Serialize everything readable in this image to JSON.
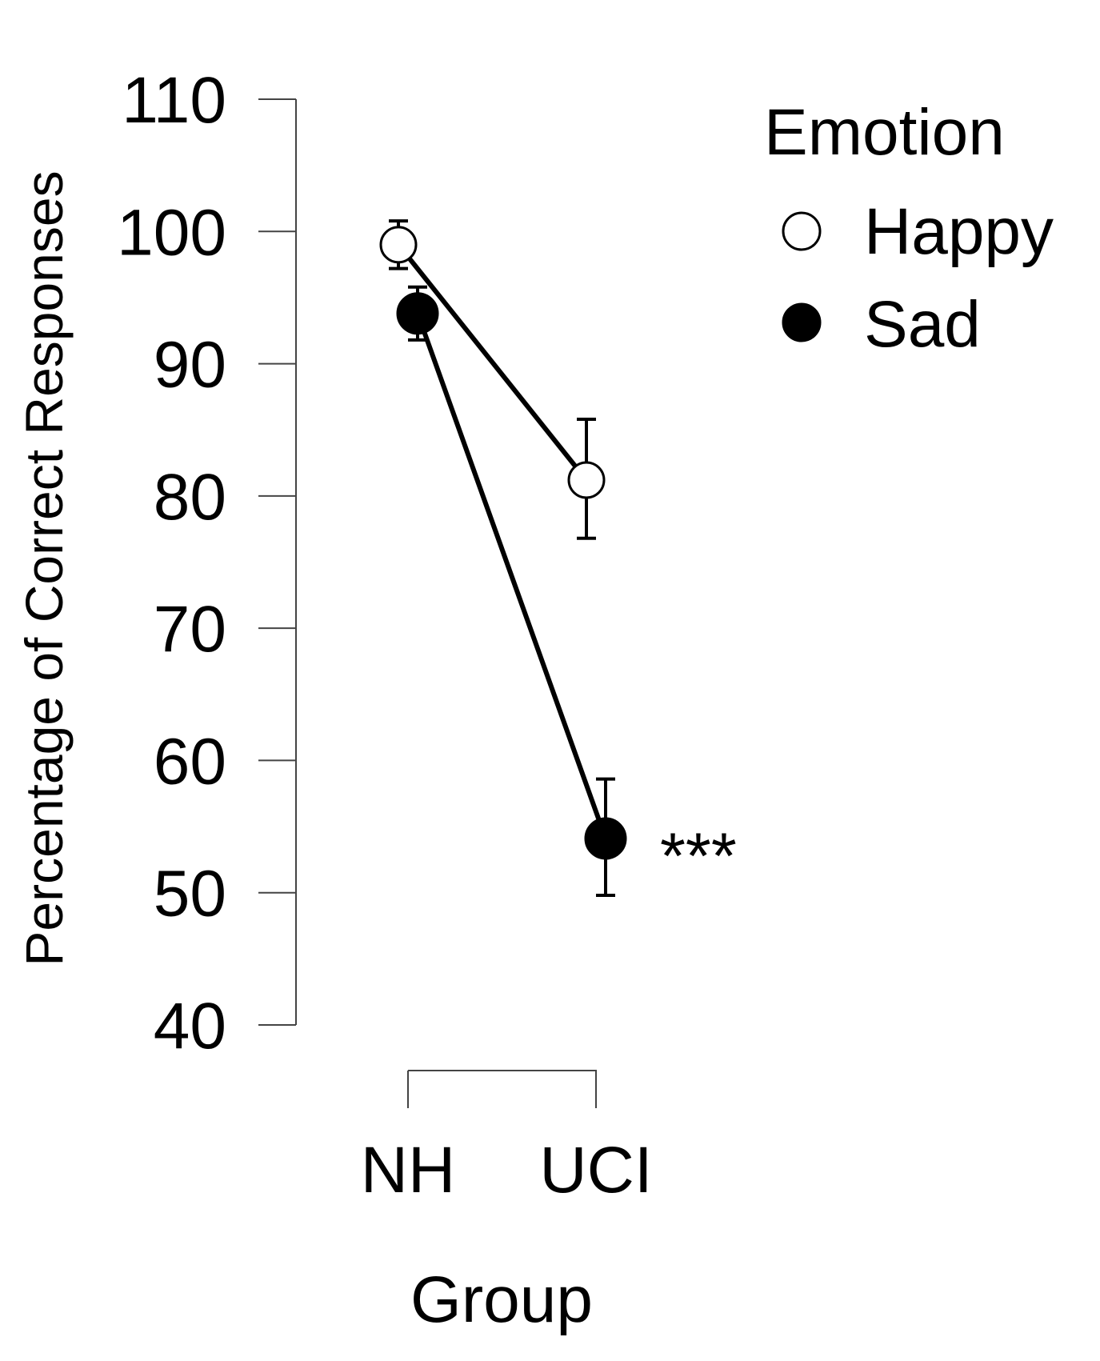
{
  "chart_data": {
    "type": "line",
    "categories": [
      "NH",
      "UCI"
    ],
    "xlabel": "Group",
    "ylabel": "Percentage of Correct Responses",
    "ylim": [
      40,
      110
    ],
    "yticks": [
      110,
      100,
      90,
      80,
      70,
      60,
      50,
      40
    ],
    "legend": {
      "title": "Emotion",
      "placement": "top-right"
    },
    "grid": false,
    "series": [
      {
        "name": "Happy",
        "marker": "open-circle",
        "values": [
          99,
          81.2
        ],
        "error": [
          [
            97.2,
            100.8
          ],
          [
            76.8,
            85.8
          ]
        ]
      },
      {
        "name": "Sad",
        "marker": "filled-circle",
        "values": [
          93.8,
          54.1
        ],
        "error": [
          [
            91.8,
            95.8
          ],
          [
            49.8,
            58.6
          ]
        ]
      }
    ],
    "annotations": [
      {
        "text": "***",
        "category": "UCI",
        "y": 54.1
      }
    ],
    "colors": {
      "line": "#000000",
      "axis": "#444444",
      "happy_fill": "#ffffff",
      "sad_fill": "#000000"
    }
  }
}
